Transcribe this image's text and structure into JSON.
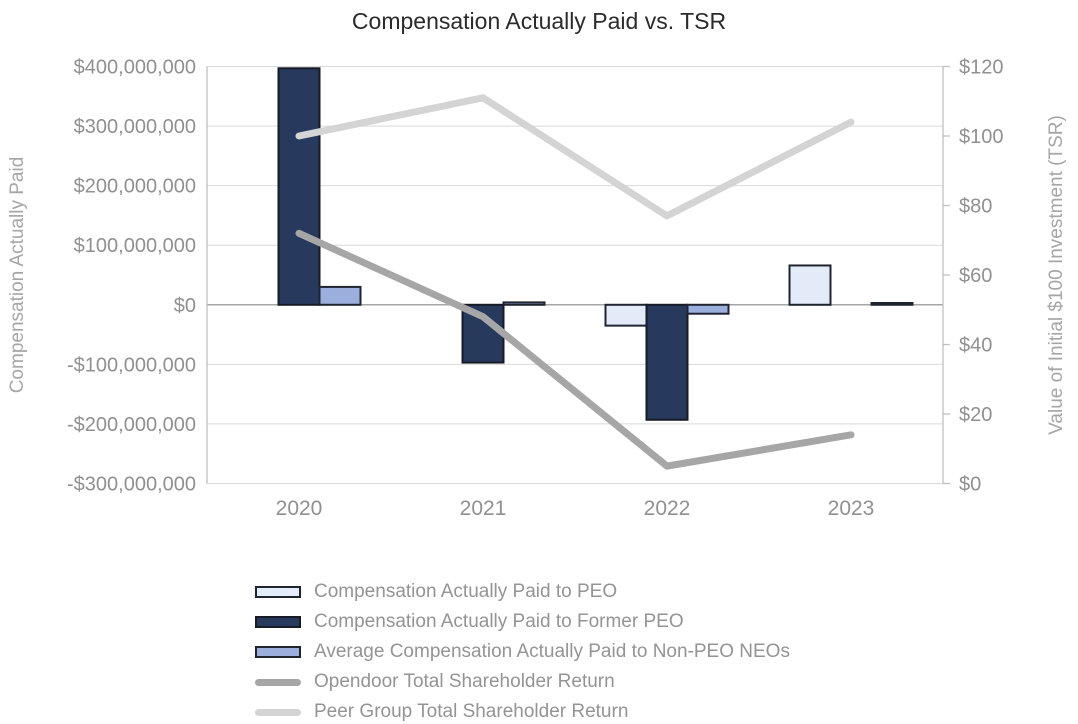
{
  "chart_data": {
    "type": "combo-bar-line",
    "title": "Compensation Actually Paid vs. TSR",
    "categories": [
      "2020",
      "2021",
      "2022",
      "2023"
    ],
    "bar_series": [
      {
        "name": "Compensation Actually Paid to PEO",
        "color": "#e3eaf8",
        "border": "#1f2430",
        "values": [
          null,
          null,
          -35000000,
          66000000
        ]
      },
      {
        "name": "Compensation Actually Paid to Former PEO",
        "color": "#273a5e",
        "border": "#161b26",
        "values": [
          397000000,
          -97000000,
          -193000000,
          null
        ]
      },
      {
        "name": "Average Compensation Actually Paid to Non-PEO NEOs",
        "color": "#9bafdc",
        "border": "#1f2430",
        "values": [
          30000000,
          4000000,
          -15000000,
          3000000
        ]
      }
    ],
    "line_series": [
      {
        "name": "Opendoor Total Shareholder Return",
        "color": "#a6a6a6",
        "values": [
          72,
          48,
          5,
          14
        ]
      },
      {
        "name": "Peer Group Total Shareholder Return",
        "color": "#d4d4d4",
        "values": [
          100,
          111,
          77,
          104
        ]
      }
    ],
    "left_axis": {
      "title": "Compensation Actually Paid",
      "min": -300000000,
      "max": 400000000,
      "step": 100000000,
      "tick_labels": [
        "$400,000,000",
        "$300,000,000",
        "$200,000,000",
        "$100,000,000",
        "$0",
        "-$100,000,000",
        "-$200,000,000",
        "-$300,000,000"
      ]
    },
    "right_axis": {
      "title": "Value of Initial $100 Investment (TSR)",
      "min": 0,
      "max": 120,
      "step": 20,
      "tick_labels": [
        "$120",
        "$100",
        "$80",
        "$60",
        "$40",
        "$20",
        "$0"
      ]
    },
    "grid": true,
    "legend_position": "bottom-left",
    "palette": {
      "title_text": "#2b2b2b",
      "tick_text": "#909090",
      "axis_title_text": "#a6a6a6",
      "legend_text": "#949494",
      "grid_line": "#d9d9d9",
      "zero_line": "#a6a6a6",
      "axis_line": "#bfbfbf"
    }
  }
}
